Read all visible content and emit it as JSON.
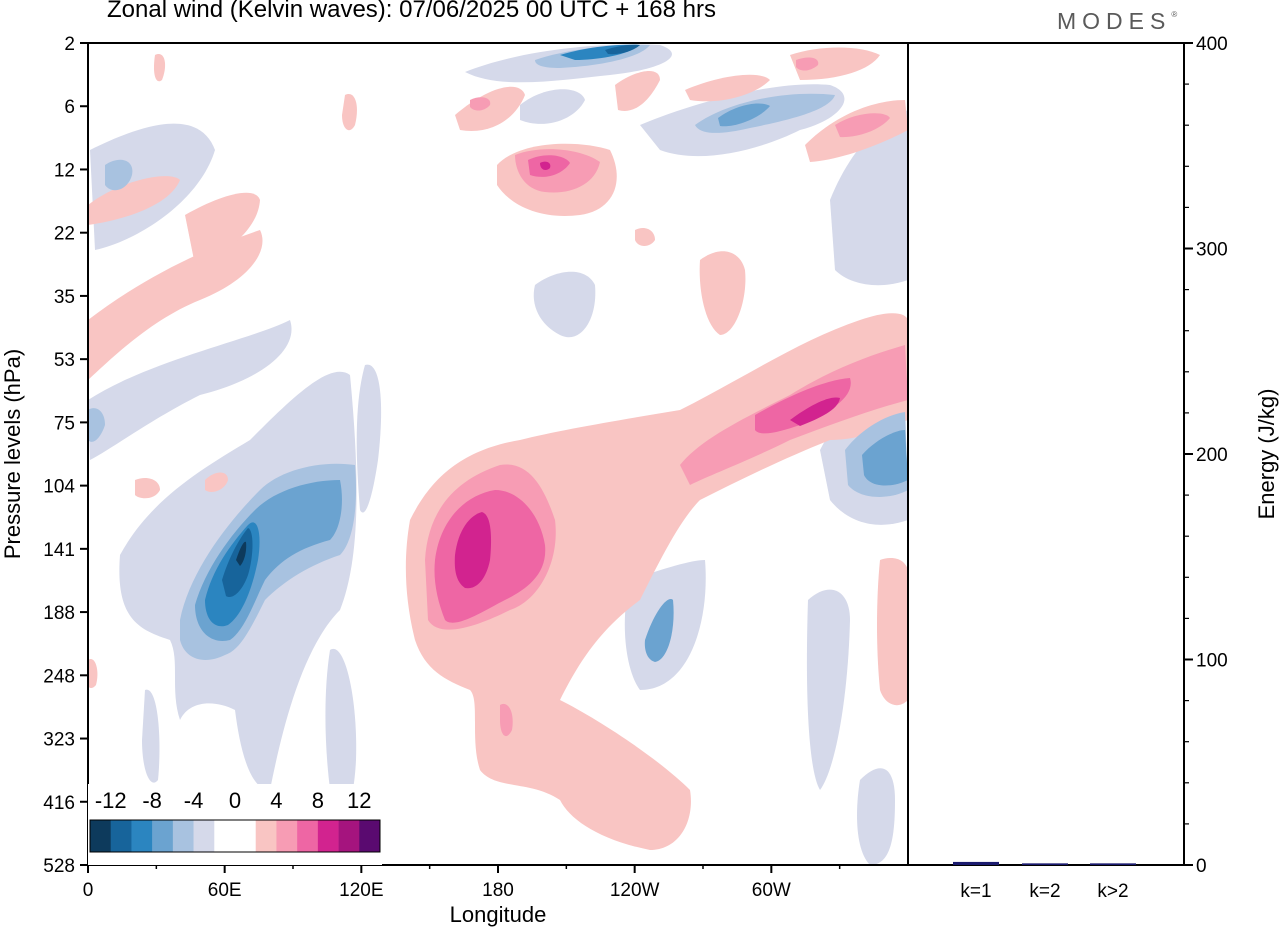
{
  "title": "Zonal wind (Kelvin waves):  07/06/2025  00 UTC  + 168 hrs",
  "logo": "MODES",
  "colorbar": {
    "labels": [
      "-12",
      "-8",
      "-4",
      "0",
      "4",
      "8",
      "12"
    ],
    "colors": [
      "#0d3a5c",
      "#17649b",
      "#2b85c0",
      "#6ba3d0",
      "#a8c2e0",
      "#d5d9ea",
      "#ffffff",
      "#ffffff",
      "#f9c5c3",
      "#f79cb4",
      "#ee66a4",
      "#d2238f",
      "#a5147e",
      "#5a0a70"
    ]
  },
  "chart_data": [
    {
      "type": "heatmap",
      "title": "Zonal wind (Kelvin waves):  07/06/2025  00 UTC  + 168 hrs",
      "xlabel": "Longitude",
      "ylabel": "Pressure levels (hPa)",
      "x_ticks": [
        "0",
        "60E",
        "120E",
        "180",
        "120W",
        "60W"
      ],
      "y_ticks": [
        "2",
        "6",
        "12",
        "22",
        "35",
        "53",
        "75",
        "104",
        "141",
        "188",
        "248",
        "323",
        "416",
        "528"
      ],
      "xlim": [
        0,
        360
      ],
      "contour_levels": [
        -12,
        -10,
        -8,
        -6,
        -4,
        -2,
        0,
        2,
        4,
        6,
        8,
        10,
        12
      ],
      "features": [
        {
          "sign": "negative",
          "min_value": -14,
          "lon": 67,
          "pressure": 141
        },
        {
          "sign": "positive",
          "max_value": 10,
          "lon": 170,
          "pressure": 141
        },
        {
          "sign": "positive",
          "max_value": 8,
          "lon": 315,
          "pressure": 75
        },
        {
          "sign": "negative",
          "min_value": -8,
          "lon": 348,
          "pressure": 104
        },
        {
          "sign": "positive",
          "max_value": 8,
          "lon": 200,
          "pressure": 12
        },
        {
          "sign": "negative",
          "min_value": -10,
          "lon": 230,
          "pressure": 2
        }
      ]
    },
    {
      "type": "bar",
      "categories": [
        "k=1",
        "k=2",
        "k>2"
      ],
      "values": [
        1.5,
        0.8,
        0.8
      ],
      "ylabel": "Energy (J/kg)",
      "y_ticks": [
        "0",
        "100",
        "200",
        "300",
        "400"
      ],
      "ylim": [
        0,
        400
      ],
      "bar_color": "#1a1a6e"
    }
  ]
}
